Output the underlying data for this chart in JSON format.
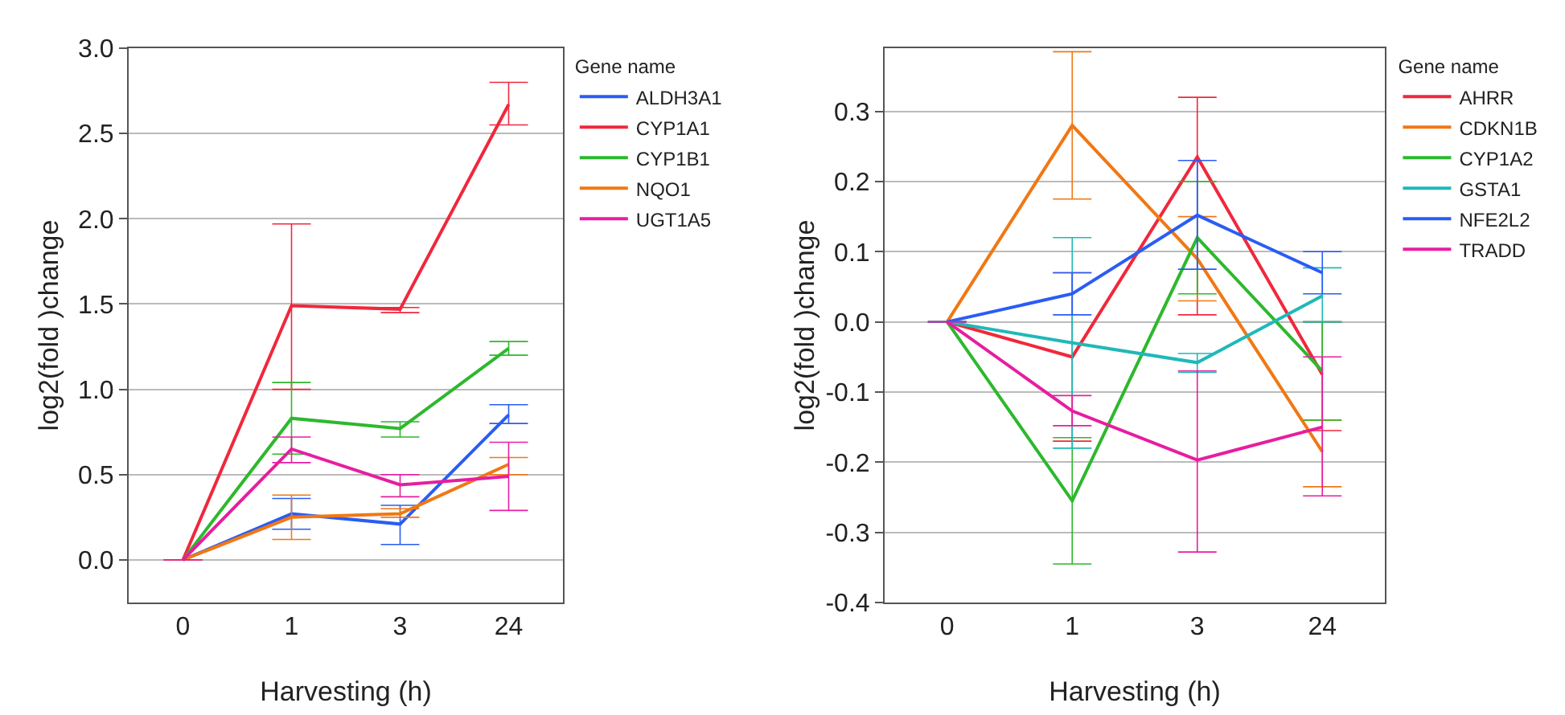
{
  "chart_data": [
    {
      "type": "line",
      "xlabel": "Harvesting (h)",
      "ylabel": "log2(fold )change",
      "legend_title": "Gene name",
      "legend": "right",
      "grid": "y",
      "categories": [
        "0",
        "1",
        "3",
        "24"
      ],
      "ylim": [
        -0.25,
        3.0
      ],
      "yticks": [
        {
          "value": 0,
          "label": "0.0"
        },
        {
          "value": 0.5,
          "label": "0.5"
        },
        {
          "value": 1,
          "label": "1.0"
        },
        {
          "value": 1.5,
          "label": "1.5"
        },
        {
          "value": 2,
          "label": "2.0"
        },
        {
          "value": 2.5,
          "label": "2.5"
        },
        {
          "value": 3,
          "label": "3.0"
        }
      ],
      "series": [
        {
          "name": "ALDH3A1",
          "color": "#2a5cf5",
          "values": [
            0,
            0.27,
            0.21,
            0.85
          ],
          "errors": [
            null,
            [
              0.18,
              0.36
            ],
            [
              0.09,
              0.32
            ],
            [
              0.8,
              0.91
            ]
          ]
        },
        {
          "name": "CYP1A1",
          "color": "#f0283c",
          "values": [
            0,
            1.49,
            1.47,
            2.67
          ],
          "errors": [
            null,
            [
              1.0,
              1.97
            ],
            [
              1.45,
              1.48
            ],
            [
              2.55,
              2.8
            ]
          ]
        },
        {
          "name": "CYP1B1",
          "color": "#2db82d",
          "values": [
            0,
            0.83,
            0.77,
            1.24
          ],
          "errors": [
            null,
            [
              0.62,
              1.04
            ],
            [
              0.72,
              0.81
            ],
            [
              1.2,
              1.28
            ]
          ]
        },
        {
          "name": "NQO1",
          "color": "#f07814",
          "values": [
            0,
            0.25,
            0.27,
            0.56
          ],
          "errors": [
            null,
            [
              0.12,
              0.38
            ],
            [
              0.25,
              0.3
            ],
            [
              0.5,
              0.6
            ]
          ]
        },
        {
          "name": "UGT1A5",
          "color": "#e61ea0",
          "values": [
            0,
            0.65,
            0.44,
            0.49
          ],
          "errors": [
            null,
            [
              0.57,
              0.72
            ],
            [
              0.37,
              0.5
            ],
            [
              0.29,
              0.69
            ]
          ]
        }
      ]
    },
    {
      "type": "line",
      "xlabel": "Harvesting (h)",
      "ylabel": "log2(fold )change",
      "legend_title": "Gene name",
      "legend": "right",
      "grid": "y",
      "categories": [
        "0",
        "1",
        "3",
        "24"
      ],
      "ylim": [
        -0.4,
        0.39
      ],
      "yticks": [
        {
          "value": -0.4,
          "label": "-0.4"
        },
        {
          "value": -0.3,
          "label": "-0.3"
        },
        {
          "value": -0.2,
          "label": "-0.2"
        },
        {
          "value": -0.1,
          "label": "-0.1"
        },
        {
          "value": 0,
          "label": "0.0"
        },
        {
          "value": 0.1,
          "label": "0.1"
        },
        {
          "value": 0.2,
          "label": "0.2"
        },
        {
          "value": 0.3,
          "label": "0.3"
        }
      ],
      "series": [
        {
          "name": "AHRR",
          "color": "#f0283c",
          "values": [
            0,
            -0.05,
            0.235,
            -0.075
          ],
          "errors": [
            null,
            [
              -0.17,
              0.07
            ],
            [
              0.01,
              0.32
            ],
            [
              -0.155,
              0
            ]
          ]
        },
        {
          "name": "CDKN1B",
          "color": "#f07814",
          "values": [
            0,
            0.28,
            0.09,
            -0.185
          ],
          "errors": [
            null,
            [
              0.175,
              0.385
            ],
            [
              0.03,
              0.15
            ],
            [
              -0.235,
              -0.14
            ]
          ]
        },
        {
          "name": "CYP1A2",
          "color": "#2db82d",
          "values": [
            0,
            -0.255,
            0.12,
            -0.07
          ],
          "errors": [
            null,
            [
              -0.345,
              -0.165
            ],
            [
              0.04,
              0.2
            ],
            [
              -0.14,
              0
            ]
          ]
        },
        {
          "name": "GSTA1",
          "color": "#20b8b8",
          "values": [
            0,
            -0.03,
            -0.058,
            0.037
          ],
          "errors": [
            null,
            [
              -0.18,
              0.12
            ],
            [
              -0.072,
              -0.045
            ],
            [
              0,
              0.077
            ]
          ]
        },
        {
          "name": "NFE2L2",
          "color": "#2a5cf5",
          "values": [
            0,
            0.04,
            0.152,
            0.07
          ],
          "errors": [
            null,
            [
              0.01,
              0.07
            ],
            [
              0.075,
              0.23
            ],
            [
              0.04,
              0.1
            ]
          ]
        },
        {
          "name": "TRADD",
          "color": "#e61ea0",
          "values": [
            0,
            -0.127,
            -0.197,
            -0.15
          ],
          "errors": [
            null,
            [
              -0.148,
              -0.105
            ],
            [
              -0.328,
              -0.07
            ],
            [
              -0.248,
              -0.05
            ]
          ]
        }
      ]
    }
  ]
}
